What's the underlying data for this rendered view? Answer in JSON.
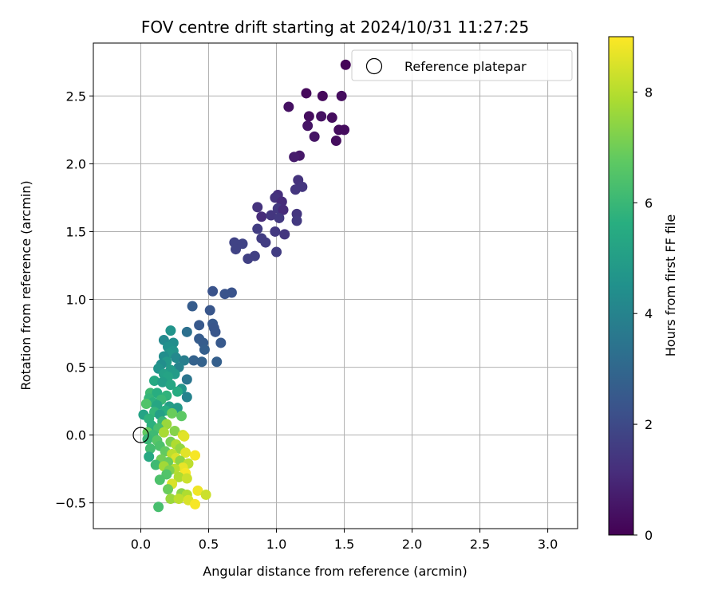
{
  "chart_data": {
    "type": "scatter",
    "title": "FOV centre drift starting at 2024/10/31 11:27:25",
    "xlabel": "Angular distance from reference (arcmin)",
    "ylabel": "Rotation from reference (arcmin)",
    "xlim": [
      -0.35,
      3.22
    ],
    "ylim": [
      -0.69,
      2.89
    ],
    "xticks": [
      0.0,
      0.5,
      1.0,
      1.5,
      2.0,
      2.5,
      3.0
    ],
    "xtick_labels": [
      "0.0",
      "0.5",
      "1.0",
      "1.5",
      "2.0",
      "2.5",
      "3.0"
    ],
    "yticks": [
      -0.5,
      0.0,
      0.5,
      1.0,
      1.5,
      2.0,
      2.5
    ],
    "ytick_labels": [
      "−0.5",
      "0.0",
      "0.5",
      "1.0",
      "1.5",
      "2.0",
      "2.5"
    ],
    "grid": true,
    "legend": {
      "position": "top-right",
      "entries": [
        "Reference platepar"
      ]
    },
    "reference_point": {
      "x": 0.0,
      "y": 0.0
    },
    "colorbar": {
      "label": "Hours from first FF file",
      "range": [
        0,
        9
      ],
      "ticks": [
        0,
        2,
        4,
        6,
        8
      ],
      "tick_labels": [
        "0",
        "2",
        "4",
        "6",
        "8"
      ],
      "colormap": "viridis"
    },
    "points": [
      {
        "x": 1.51,
        "y": 2.73,
        "h": 0.1
      },
      {
        "x": 1.22,
        "y": 2.52,
        "h": 0.2
      },
      {
        "x": 1.34,
        "y": 2.5,
        "h": 0.2
      },
      {
        "x": 1.48,
        "y": 2.5,
        "h": 0.3
      },
      {
        "x": 1.09,
        "y": 2.42,
        "h": 0.4
      },
      {
        "x": 1.24,
        "y": 2.35,
        "h": 0.3
      },
      {
        "x": 1.33,
        "y": 2.35,
        "h": 0.4
      },
      {
        "x": 1.41,
        "y": 2.34,
        "h": 0.3
      },
      {
        "x": 1.23,
        "y": 2.28,
        "h": 0.5
      },
      {
        "x": 1.46,
        "y": 2.25,
        "h": 0.3
      },
      {
        "x": 1.5,
        "y": 2.25,
        "h": 0.3
      },
      {
        "x": 1.28,
        "y": 2.2,
        "h": 0.5
      },
      {
        "x": 1.44,
        "y": 2.17,
        "h": 0.3
      },
      {
        "x": 1.17,
        "y": 2.06,
        "h": 0.6
      },
      {
        "x": 1.13,
        "y": 2.05,
        "h": 0.7
      },
      {
        "x": 1.16,
        "y": 1.88,
        "h": 1.3
      },
      {
        "x": 1.19,
        "y": 1.83,
        "h": 1.4
      },
      {
        "x": 1.14,
        "y": 1.81,
        "h": 1.4
      },
      {
        "x": 1.01,
        "y": 1.77,
        "h": 1.2
      },
      {
        "x": 0.99,
        "y": 1.75,
        "h": 1.3
      },
      {
        "x": 1.04,
        "y": 1.72,
        "h": 1.1
      },
      {
        "x": 0.86,
        "y": 1.68,
        "h": 1.3
      },
      {
        "x": 1.01,
        "y": 1.67,
        "h": 1.5
      },
      {
        "x": 1.05,
        "y": 1.66,
        "h": 1.1
      },
      {
        "x": 1.15,
        "y": 1.63,
        "h": 1.4
      },
      {
        "x": 0.89,
        "y": 1.61,
        "h": 1.1
      },
      {
        "x": 0.96,
        "y": 1.62,
        "h": 1.4
      },
      {
        "x": 1.02,
        "y": 1.6,
        "h": 1.5
      },
      {
        "x": 1.15,
        "y": 1.58,
        "h": 1.5
      },
      {
        "x": 0.86,
        "y": 1.52,
        "h": 1.6
      },
      {
        "x": 0.99,
        "y": 1.5,
        "h": 1.5
      },
      {
        "x": 1.06,
        "y": 1.48,
        "h": 1.4
      },
      {
        "x": 0.89,
        "y": 1.45,
        "h": 1.6
      },
      {
        "x": 0.92,
        "y": 1.42,
        "h": 1.6
      },
      {
        "x": 0.69,
        "y": 1.42,
        "h": 1.8
      },
      {
        "x": 0.75,
        "y": 1.41,
        "h": 1.8
      },
      {
        "x": 0.7,
        "y": 1.37,
        "h": 1.8
      },
      {
        "x": 1.0,
        "y": 1.35,
        "h": 1.6
      },
      {
        "x": 0.84,
        "y": 1.32,
        "h": 1.7
      },
      {
        "x": 0.79,
        "y": 1.3,
        "h": 1.7
      },
      {
        "x": 0.53,
        "y": 1.06,
        "h": 2.3
      },
      {
        "x": 0.67,
        "y": 1.05,
        "h": 2.3
      },
      {
        "x": 0.62,
        "y": 1.04,
        "h": 2.3
      },
      {
        "x": 0.38,
        "y": 0.95,
        "h": 2.6
      },
      {
        "x": 0.51,
        "y": 0.92,
        "h": 2.4
      },
      {
        "x": 0.53,
        "y": 0.82,
        "h": 2.5
      },
      {
        "x": 0.43,
        "y": 0.81,
        "h": 2.5
      },
      {
        "x": 0.54,
        "y": 0.79,
        "h": 2.4
      },
      {
        "x": 0.55,
        "y": 0.76,
        "h": 2.4
      },
      {
        "x": 0.43,
        "y": 0.71,
        "h": 2.6
      },
      {
        "x": 0.46,
        "y": 0.68,
        "h": 2.6
      },
      {
        "x": 0.59,
        "y": 0.68,
        "h": 2.5
      },
      {
        "x": 0.47,
        "y": 0.63,
        "h": 2.7
      },
      {
        "x": 0.39,
        "y": 0.55,
        "h": 2.8
      },
      {
        "x": 0.45,
        "y": 0.54,
        "h": 2.8
      },
      {
        "x": 0.56,
        "y": 0.54,
        "h": 2.7
      },
      {
        "x": 0.34,
        "y": 0.76,
        "h": 3.3
      },
      {
        "x": 0.22,
        "y": 0.77,
        "h": 4.6
      },
      {
        "x": 0.17,
        "y": 0.7,
        "h": 4.2
      },
      {
        "x": 0.24,
        "y": 0.68,
        "h": 4.4
      },
      {
        "x": 0.2,
        "y": 0.65,
        "h": 4.5
      },
      {
        "x": 0.24,
        "y": 0.62,
        "h": 4.6
      },
      {
        "x": 0.21,
        "y": 0.6,
        "h": 4.7
      },
      {
        "x": 0.17,
        "y": 0.58,
        "h": 4.4
      },
      {
        "x": 0.26,
        "y": 0.57,
        "h": 4.2
      },
      {
        "x": 0.32,
        "y": 0.55,
        "h": 3.8
      },
      {
        "x": 0.19,
        "y": 0.54,
        "h": 4.8
      },
      {
        "x": 0.15,
        "y": 0.52,
        "h": 4.4
      },
      {
        "x": 0.28,
        "y": 0.5,
        "h": 4.0
      },
      {
        "x": 0.22,
        "y": 0.48,
        "h": 4.9
      },
      {
        "x": 0.13,
        "y": 0.49,
        "h": 4.6
      },
      {
        "x": 0.17,
        "y": 0.45,
        "h": 5.1
      },
      {
        "x": 0.25,
        "y": 0.45,
        "h": 4.9
      },
      {
        "x": 0.2,
        "y": 0.43,
        "h": 5.2
      },
      {
        "x": 0.34,
        "y": 0.41,
        "h": 3.5
      },
      {
        "x": 0.1,
        "y": 0.4,
        "h": 5.4
      },
      {
        "x": 0.16,
        "y": 0.39,
        "h": 5.0
      },
      {
        "x": 0.22,
        "y": 0.37,
        "h": 5.3
      },
      {
        "x": 0.3,
        "y": 0.34,
        "h": 4.6
      },
      {
        "x": 0.27,
        "y": 0.32,
        "h": 5.5
      },
      {
        "x": 0.07,
        "y": 0.31,
        "h": 6.1
      },
      {
        "x": 0.12,
        "y": 0.31,
        "h": 5.6
      },
      {
        "x": 0.19,
        "y": 0.29,
        "h": 5.8
      },
      {
        "x": 0.34,
        "y": 0.28,
        "h": 4.0
      },
      {
        "x": 0.06,
        "y": 0.27,
        "h": 5.9
      },
      {
        "x": 0.15,
        "y": 0.26,
        "h": 6.0
      },
      {
        "x": 0.09,
        "y": 0.24,
        "h": 5.7
      },
      {
        "x": 0.04,
        "y": 0.23,
        "h": 6.5
      },
      {
        "x": 0.12,
        "y": 0.22,
        "h": 5.3
      },
      {
        "x": 0.21,
        "y": 0.21,
        "h": 5.0
      },
      {
        "x": 0.27,
        "y": 0.2,
        "h": 4.8
      },
      {
        "x": 0.18,
        "y": 0.18,
        "h": 5.6
      },
      {
        "x": 0.1,
        "y": 0.17,
        "h": 5.9
      },
      {
        "x": 0.23,
        "y": 0.16,
        "h": 6.9
      },
      {
        "x": 0.02,
        "y": 0.15,
        "h": 5.2
      },
      {
        "x": 0.14,
        "y": 0.15,
        "h": 5.1
      },
      {
        "x": 0.3,
        "y": 0.14,
        "h": 6.7
      },
      {
        "x": 0.06,
        "y": 0.12,
        "h": 5.8
      },
      {
        "x": 0.16,
        "y": 0.1,
        "h": 6.0
      },
      {
        "x": 0.19,
        "y": 0.08,
        "h": 7.6
      },
      {
        "x": 0.08,
        "y": 0.07,
        "h": 5.7
      },
      {
        "x": 0.13,
        "y": 0.05,
        "h": 6.3
      },
      {
        "x": 0.17,
        "y": 0.02,
        "h": 7.8
      },
      {
        "x": 0.25,
        "y": 0.03,
        "h": 7.3
      },
      {
        "x": 0.05,
        "y": 0.02,
        "h": 6.8
      },
      {
        "x": 0.09,
        "y": 0.0,
        "h": 6.1
      },
      {
        "x": 0.31,
        "y": 0.0,
        "h": 8.4
      },
      {
        "x": 0.32,
        "y": -0.01,
        "h": 8.6
      },
      {
        "x": 0.05,
        "y": -0.03,
        "h": 6.0
      },
      {
        "x": 0.12,
        "y": -0.04,
        "h": 6.6
      },
      {
        "x": 0.22,
        "y": -0.05,
        "h": 7.1
      },
      {
        "x": 0.26,
        "y": -0.07,
        "h": 7.9
      },
      {
        "x": 0.14,
        "y": -0.08,
        "h": 6.4
      },
      {
        "x": 0.07,
        "y": -0.1,
        "h": 6.2
      },
      {
        "x": 0.29,
        "y": -0.1,
        "h": 7.5
      },
      {
        "x": 0.18,
        "y": -0.12,
        "h": 6.8
      },
      {
        "x": 0.33,
        "y": -0.13,
        "h": 8.6
      },
      {
        "x": 0.23,
        "y": -0.14,
        "h": 8.1
      },
      {
        "x": 0.4,
        "y": -0.15,
        "h": 8.9
      },
      {
        "x": 0.06,
        "y": -0.16,
        "h": 5.4
      },
      {
        "x": 0.26,
        "y": -0.17,
        "h": 8.5
      },
      {
        "x": 0.15,
        "y": -0.18,
        "h": 7.0
      },
      {
        "x": 0.29,
        "y": -0.19,
        "h": 7.4
      },
      {
        "x": 0.2,
        "y": -0.2,
        "h": 6.9
      },
      {
        "x": 0.35,
        "y": -0.21,
        "h": 8.1
      },
      {
        "x": 0.11,
        "y": -0.22,
        "h": 6.1
      },
      {
        "x": 0.17,
        "y": -0.23,
        "h": 7.7
      },
      {
        "x": 0.31,
        "y": -0.24,
        "h": 8.7
      },
      {
        "x": 0.25,
        "y": -0.25,
        "h": 8.0
      },
      {
        "x": 0.21,
        "y": -0.26,
        "h": 7.2
      },
      {
        "x": 0.33,
        "y": -0.28,
        "h": 8.9
      },
      {
        "x": 0.19,
        "y": -0.29,
        "h": 6.5
      },
      {
        "x": 0.28,
        "y": -0.31,
        "h": 7.9
      },
      {
        "x": 0.34,
        "y": -0.32,
        "h": 8.3
      },
      {
        "x": 0.14,
        "y": -0.33,
        "h": 6.4
      },
      {
        "x": 0.23,
        "y": -0.36,
        "h": 8.5
      },
      {
        "x": 0.2,
        "y": -0.4,
        "h": 6.9
      },
      {
        "x": 0.42,
        "y": -0.41,
        "h": 8.8
      },
      {
        "x": 0.3,
        "y": -0.43,
        "h": 7.4
      },
      {
        "x": 0.34,
        "y": -0.44,
        "h": 7.9
      },
      {
        "x": 0.48,
        "y": -0.44,
        "h": 8.3
      },
      {
        "x": 0.22,
        "y": -0.47,
        "h": 7.6
      },
      {
        "x": 0.28,
        "y": -0.47,
        "h": 8.1
      },
      {
        "x": 0.35,
        "y": -0.48,
        "h": 8.5
      },
      {
        "x": 0.4,
        "y": -0.51,
        "h": 8.9
      },
      {
        "x": 0.13,
        "y": -0.53,
        "h": 6.3
      }
    ]
  }
}
